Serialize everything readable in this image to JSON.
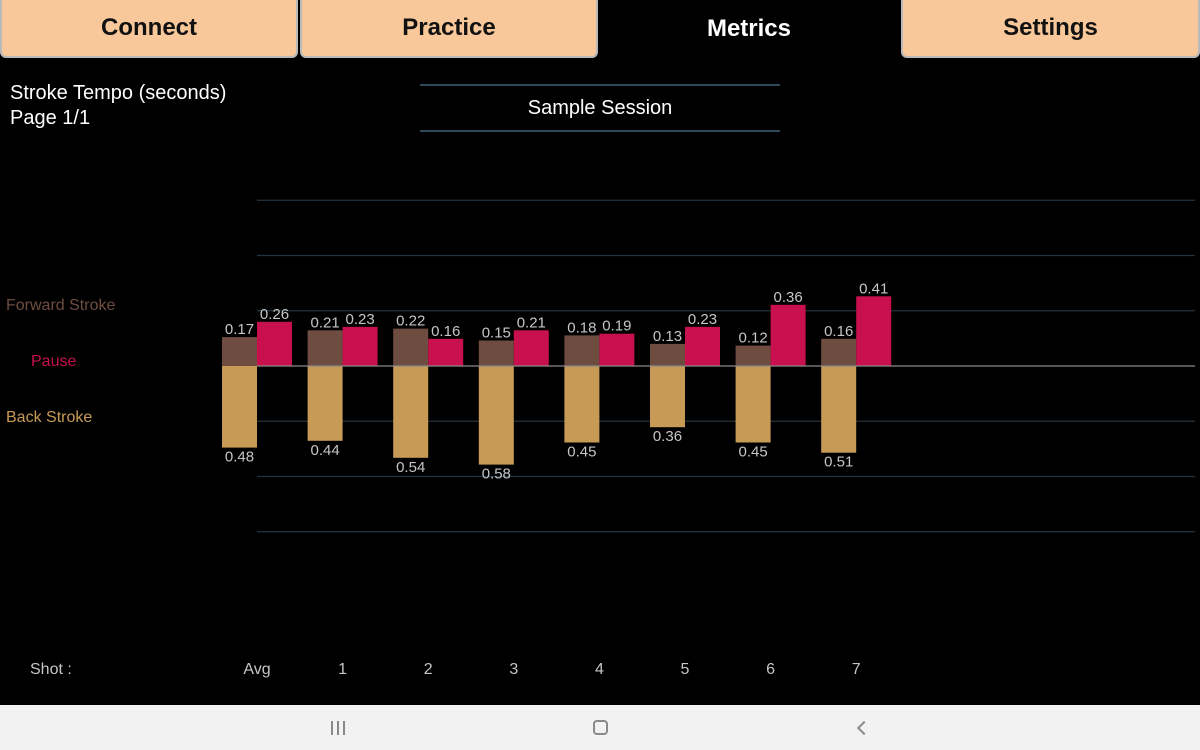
{
  "tabs": [
    {
      "label": "Connect",
      "active": false
    },
    {
      "label": "Practice",
      "active": false
    },
    {
      "label": "Metrics",
      "active": true
    },
    {
      "label": "Settings",
      "active": false
    }
  ],
  "header": {
    "title": "Stroke Tempo (seconds)",
    "page": "Page 1/1",
    "session": "Sample Session"
  },
  "colors": {
    "forward": "#6e4d40",
    "pause": "#c8104f",
    "back": "#c79a55",
    "label_text": "#c6c6c6",
    "grid": "#24333d",
    "baseline": "#8a8a8a"
  },
  "chart_data": {
    "type": "bar",
    "legend": [
      {
        "name": "Forward Stroke",
        "color": "#6e4d40"
      },
      {
        "name": "Pause",
        "color": "#c8104f"
      },
      {
        "name": "Back Stroke",
        "color": "#c79a55"
      }
    ],
    "xlabel": "Shot :",
    "categories": [
      "Avg",
      "1",
      "2",
      "3",
      "4",
      "5",
      "6",
      "7"
    ],
    "series": [
      {
        "name": "Forward Stroke",
        "values": [
          0.17,
          0.21,
          0.22,
          0.15,
          0.18,
          0.13,
          0.12,
          0.16
        ]
      },
      {
        "name": "Pause",
        "values": [
          0.26,
          0.23,
          0.16,
          0.21,
          0.19,
          0.23,
          0.36,
          0.41
        ]
      },
      {
        "name": "Back Stroke",
        "values": [
          0.48,
          0.44,
          0.54,
          0.58,
          0.45,
          0.36,
          0.45,
          0.51
        ]
      }
    ],
    "grid": true
  },
  "navbar": {
    "recents_icon": "recents-icon",
    "home_icon": "home-icon",
    "back_icon": "back-icon"
  }
}
